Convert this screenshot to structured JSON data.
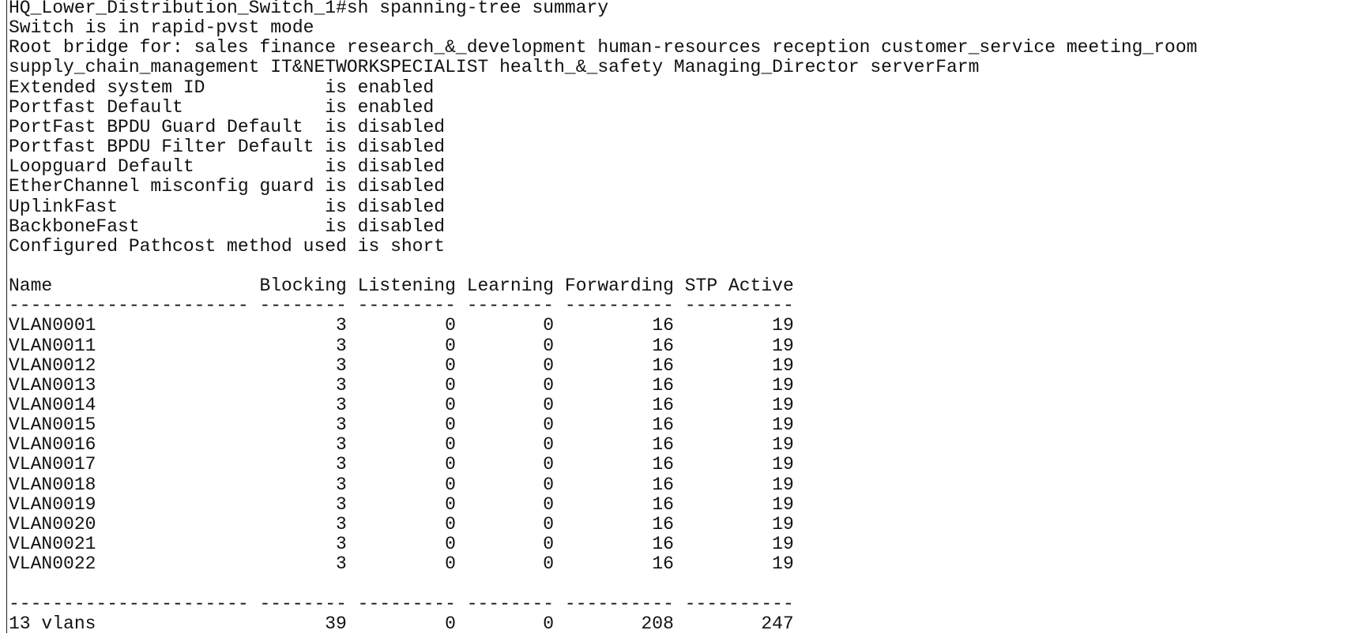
{
  "header": {
    "prompt": "HQ_Lower_Distribution_Switch_1#sh spanning-tree summary",
    "mode": "Switch is in rapid-pvst mode",
    "root_bridge": [
      "Root bridge for: sales finance research_&_development human-resources reception customer_service meeting_room",
      "supply_chain_management IT&NETWORKSPECIALIST health_&_safety Managing_Director serverFarm"
    ]
  },
  "settings": [
    "Extended system ID           is enabled",
    "Portfast Default             is enabled",
    "PortFast BPDU Guard Default  is disabled",
    "Portfast BPDU Filter Default is disabled",
    "Loopguard Default            is disabled",
    "EtherChannel misconfig guard is disabled",
    "UplinkFast                   is disabled",
    "BackboneFast                 is disabled",
    "Configured Pathcost method used is short"
  ],
  "table": {
    "columns": [
      "Name",
      "Blocking",
      "Listening",
      "Learning",
      "Forwarding",
      "STP Active"
    ],
    "separator": "---------------------- -------- --------- -------- ---------- ----------",
    "rows": [
      [
        "VLAN0001",
        3,
        0,
        0,
        16,
        19
      ],
      [
        "VLAN0011",
        3,
        0,
        0,
        16,
        19
      ],
      [
        "VLAN0012",
        3,
        0,
        0,
        16,
        19
      ],
      [
        "VLAN0013",
        3,
        0,
        0,
        16,
        19
      ],
      [
        "VLAN0014",
        3,
        0,
        0,
        16,
        19
      ],
      [
        "VLAN0015",
        3,
        0,
        0,
        16,
        19
      ],
      [
        "VLAN0016",
        3,
        0,
        0,
        16,
        19
      ],
      [
        "VLAN0017",
        3,
        0,
        0,
        16,
        19
      ],
      [
        "VLAN0018",
        3,
        0,
        0,
        16,
        19
      ],
      [
        "VLAN0019",
        3,
        0,
        0,
        16,
        19
      ],
      [
        "VLAN0020",
        3,
        0,
        0,
        16,
        19
      ],
      [
        "VLAN0021",
        3,
        0,
        0,
        16,
        19
      ],
      [
        "VLAN0022",
        3,
        0,
        0,
        16,
        19
      ]
    ],
    "total": [
      "13 vlans",
      39,
      0,
      0,
      208,
      247
    ]
  }
}
